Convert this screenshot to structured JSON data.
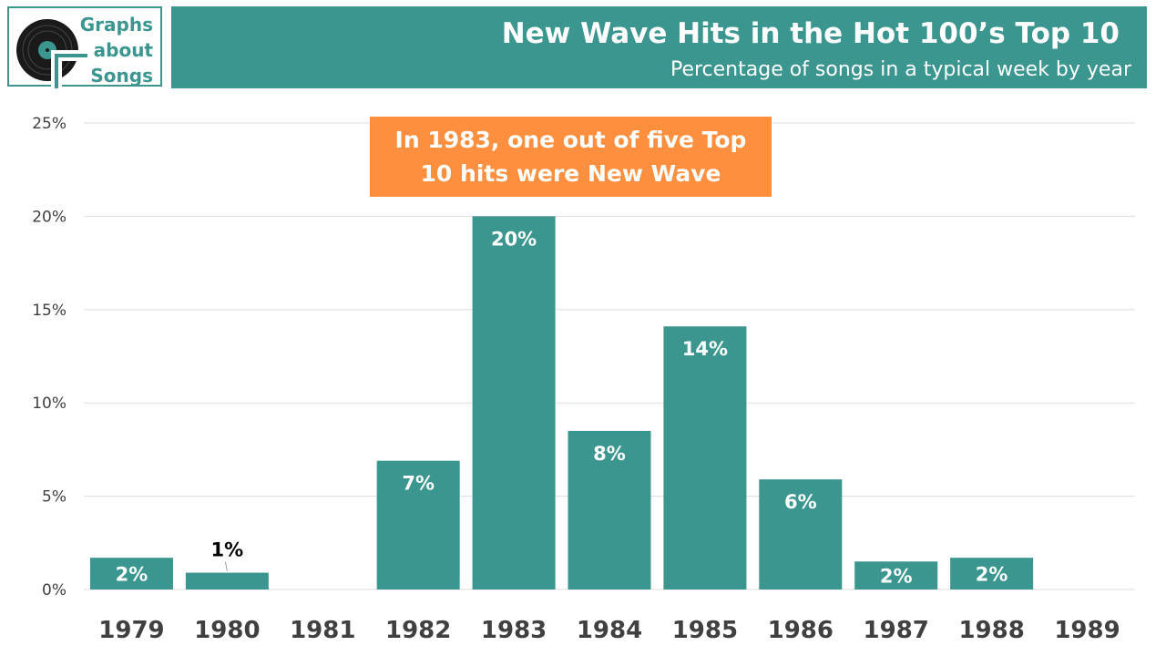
{
  "logo": {
    "lines": [
      "Graphs",
      "about",
      "Songs"
    ],
    "icon": "vinyl-record-icon"
  },
  "header": {
    "title": "New Wave Hits in the Hot 100’s Top 10",
    "subtitle": "Percentage of songs in a typical week by year"
  },
  "callout": {
    "text": "In 1983, one out of five Top 10 hits were New Wave"
  },
  "colors": {
    "bar": "#3a968f",
    "callout": "#fe8f3f",
    "grid": "#dddddd",
    "banner": "#3a968f"
  },
  "chart_data": {
    "type": "bar",
    "title": "New Wave Hits in the Hot 100’s Top 10",
    "subtitle": "Percentage of songs in a typical week by year",
    "categories": [
      "1979",
      "1980",
      "1981",
      "1982",
      "1983",
      "1984",
      "1985",
      "1986",
      "1987",
      "1988",
      "1989"
    ],
    "values": [
      1.7,
      0.9,
      0,
      6.9,
      20.0,
      8.5,
      14.1,
      5.9,
      1.5,
      1.7,
      0
    ],
    "data_labels": [
      "2%",
      "1%",
      "",
      "7%",
      "20%",
      "8%",
      "14%",
      "6%",
      "2%",
      "2%",
      ""
    ],
    "yticks": [
      0,
      5,
      10,
      15,
      20,
      25
    ],
    "ytick_labels": [
      "0%",
      "5%",
      "10%",
      "15%",
      "20%",
      "25%"
    ],
    "ylim": [
      0,
      25
    ],
    "xlabel": "",
    "ylabel": "",
    "grid": true,
    "legend": "none"
  }
}
